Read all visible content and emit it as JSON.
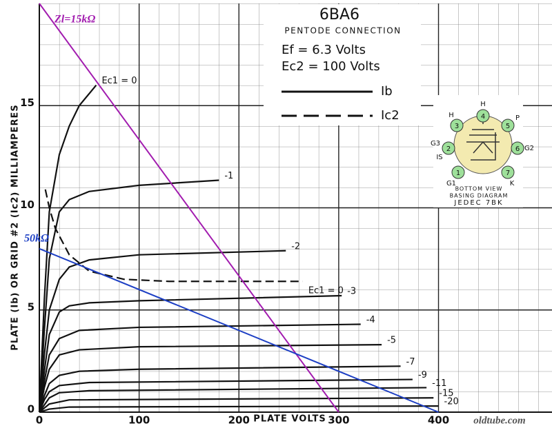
{
  "chart_data": {
    "type": "line",
    "title": "6BA6",
    "subtitle": "PENTODE CONNECTION",
    "annotations": [
      "Ef = 6.3 Volts",
      "Ec2 = 100 Volts"
    ],
    "x_label": "PLATE VOLTS",
    "y_label": "PLATE (Ib) OR GRID #2 (Ic2) MILLIAMPERES",
    "watermark": "oldtube.com",
    "xlim": [
      0,
      512
    ],
    "ylim": [
      0,
      20
    ],
    "xticks": [
      0,
      100,
      200,
      300,
      400
    ],
    "yticks": [
      0,
      5,
      10,
      15
    ],
    "grid": true,
    "legend": [
      {
        "name": "Ib",
        "dashed": false
      },
      {
        "name": "Ic2",
        "dashed": true
      }
    ],
    "series": [
      {
        "name": "Ec1 = 0",
        "color": "#111111",
        "dashed": false,
        "x": [
          0,
          5,
          10,
          20,
          30,
          40,
          57
        ],
        "values": [
          0,
          5.5,
          9.8,
          12.6,
          14,
          15,
          16
        ]
      },
      {
        "name": "-1",
        "color": "#111111",
        "dashed": false,
        "x": [
          0,
          5,
          10,
          20,
          30,
          50,
          100,
          180
        ],
        "values": [
          0,
          4,
          7.5,
          9.8,
          10.4,
          10.8,
          11.1,
          11.35
        ]
      },
      {
        "name": "-2",
        "color": "#111111",
        "dashed": false,
        "x": [
          0,
          5,
          10,
          20,
          30,
          50,
          100,
          247
        ],
        "values": [
          0,
          2.8,
          5,
          6.5,
          7.1,
          7.45,
          7.7,
          7.9
        ]
      },
      {
        "name": "-3",
        "color": "#111111",
        "dashed": false,
        "x": [
          0,
          5,
          10,
          20,
          30,
          50,
          100,
          303
        ],
        "values": [
          0,
          2,
          3.8,
          4.9,
          5.2,
          5.35,
          5.45,
          5.7
        ]
      },
      {
        "name": "-4",
        "color": "#111111",
        "dashed": false,
        "x": [
          0,
          5,
          10,
          20,
          40,
          100,
          322
        ],
        "values": [
          0,
          1.5,
          2.8,
          3.6,
          4,
          4.15,
          4.3
        ]
      },
      {
        "name": "-5",
        "color": "#111111",
        "dashed": false,
        "x": [
          0,
          5,
          10,
          20,
          40,
          100,
          343
        ],
        "values": [
          0,
          1.2,
          2.1,
          2.8,
          3.05,
          3.2,
          3.3
        ]
      },
      {
        "name": "-7",
        "color": "#111111",
        "dashed": false,
        "x": [
          0,
          5,
          10,
          20,
          40,
          100,
          362
        ],
        "values": [
          0,
          0.8,
          1.4,
          1.8,
          2,
          2.1,
          2.25
        ]
      },
      {
        "name": "-9",
        "color": "#111111",
        "dashed": false,
        "x": [
          0,
          5,
          10,
          20,
          50,
          374
        ],
        "values": [
          0,
          0.6,
          1,
          1.3,
          1.45,
          1.6
        ]
      },
      {
        "name": "-11",
        "color": "#111111",
        "dashed": false,
        "x": [
          0,
          10,
          20,
          50,
          388
        ],
        "values": [
          0,
          0.7,
          0.95,
          1.05,
          1.2
        ]
      },
      {
        "name": "-15",
        "color": "#111111",
        "dashed": false,
        "x": [
          0,
          10,
          30,
          395
        ],
        "values": [
          0,
          0.4,
          0.6,
          0.7
        ]
      },
      {
        "name": "-20",
        "color": "#111111",
        "dashed": false,
        "x": [
          0,
          10,
          30,
          400
        ],
        "values": [
          0,
          0.15,
          0.25,
          0.3
        ]
      },
      {
        "name": "Ec1 = 0",
        "color": "#111111",
        "dashed": true,
        "x": [
          6,
          10,
          16,
          30,
          50,
          85,
          130,
          264
        ],
        "values": [
          10.9,
          10,
          9,
          7.7,
          6.9,
          6.5,
          6.4,
          6.4
        ]
      },
      {
        "name": "Zl=15kΩ",
        "color": "#a21caf",
        "load_line": true,
        "x": [
          0,
          300
        ],
        "values": [
          20,
          0
        ]
      },
      {
        "name": "50kΩ",
        "color": "#1d3fc4",
        "load_line": true,
        "x": [
          0,
          400
        ],
        "values": [
          8,
          0
        ]
      }
    ]
  },
  "basing_diagram": {
    "pins": [
      {
        "num": "1",
        "labels": [
          "G1"
        ]
      },
      {
        "num": "2",
        "labels": [
          "G3",
          "IS"
        ]
      },
      {
        "num": "3",
        "labels": [
          "H"
        ]
      },
      {
        "num": "4",
        "labels": [
          "H"
        ]
      },
      {
        "num": "5",
        "labels": [
          "P"
        ]
      },
      {
        "num": "6",
        "labels": [
          "G2"
        ]
      },
      {
        "num": "7",
        "labels": [
          "K"
        ]
      }
    ],
    "captions": [
      "BOTTOM VIEW",
      "BASING DIAGRAM",
      "JEDEC 7BK"
    ]
  }
}
